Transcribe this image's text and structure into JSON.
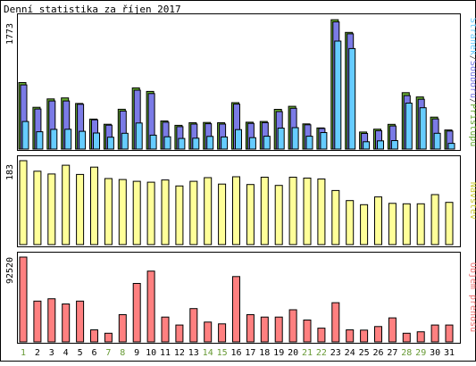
{
  "title": "Denní statistika za říjen 2017",
  "chart_data": [
    {
      "type": "bar",
      "title": "Denní statistika za říjen 2017",
      "ylabel_max": "1773",
      "ylim": [
        0,
        1773
      ],
      "legend": [
        {
          "label": "Stránek",
          "color": "#66ccff"
        },
        {
          "label": "/",
          "color": "#555555"
        },
        {
          "label": "Souborů",
          "color": "#7b7be6"
        },
        {
          "label": "/",
          "color": "#555555"
        },
        {
          "label": "Přístupů",
          "color": "#66aa33"
        }
      ],
      "legend_position": "right, vertical",
      "categories": [
        "1",
        "2",
        "3",
        "4",
        "5",
        "6",
        "7",
        "8",
        "9",
        "10",
        "11",
        "12",
        "13",
        "14",
        "15",
        "16",
        "17",
        "18",
        "19",
        "20",
        "21",
        "22",
        "23",
        "24",
        "25",
        "26",
        "27",
        "28",
        "29",
        "30",
        "31"
      ],
      "series": [
        {
          "name": "Přístupů",
          "color": "#66aa33",
          "values": [
            905,
            568,
            682,
            696,
            620,
            408,
            338,
            542,
            832,
            785,
            382,
            323,
            358,
            362,
            358,
            631,
            366,
            375,
            541,
            582,
            343,
            288,
            1760,
            1587,
            232,
            271,
            336,
            767,
            709,
            435,
            260
          ]
        },
        {
          "name": "Souborů",
          "color": "#7b7be6",
          "values": [
            873,
            545,
            655,
            655,
            610,
            398,
            325,
            517,
            802,
            755,
            365,
            305,
            340,
            345,
            340,
            612,
            350,
            360,
            510,
            555,
            330,
            280,
            1730,
            1568,
            212,
            250,
            315,
            728,
            678,
            410,
            245
          ]
        },
        {
          "name": "Stránek",
          "color": "#66ccff",
          "values": [
            375,
            235,
            268,
            270,
            242,
            218,
            162,
            215,
            355,
            190,
            168,
            145,
            148,
            172,
            165,
            265,
            155,
            175,
            285,
            292,
            175,
            225,
            1470,
            1367,
            100,
            112,
            115,
            625,
            562,
            215,
            78
          ]
        }
      ]
    },
    {
      "type": "bar",
      "ylabel_max": "183",
      "ylim": [
        0,
        183
      ],
      "legend": [
        {
          "label": "Návštěv",
          "color": "#cccc33"
        }
      ],
      "categories": [
        "1",
        "2",
        "3",
        "4",
        "5",
        "6",
        "7",
        "8",
        "9",
        "10",
        "11",
        "12",
        "13",
        "14",
        "15",
        "16",
        "17",
        "18",
        "19",
        "20",
        "21",
        "22",
        "23",
        "24",
        "25",
        "26",
        "27",
        "28",
        "29",
        "30",
        "31"
      ],
      "series": [
        {
          "name": "Návštěv",
          "color": "#ffff99",
          "values": [
            183,
            160,
            154,
            173,
            153,
            169,
            144,
            142,
            138,
            136,
            141,
            128,
            138,
            146,
            132,
            148,
            131,
            147,
            129,
            147,
            145,
            143,
            118,
            96,
            87,
            104,
            90,
            89,
            89,
            109,
            92
          ]
        }
      ]
    },
    {
      "type": "bar",
      "ylabel_max": "92520",
      "ylim": [
        0,
        92520
      ],
      "legend": [
        {
          "label": "Objem přenosu",
          "color": "#ee7777"
        }
      ],
      "categories": [
        "1",
        "2",
        "3",
        "4",
        "5",
        "6",
        "7",
        "8",
        "9",
        "10",
        "11",
        "12",
        "13",
        "14",
        "15",
        "16",
        "17",
        "18",
        "19",
        "20",
        "21",
        "22",
        "23",
        "24",
        "25",
        "26",
        "27",
        "28",
        "29",
        "30",
        "31"
      ],
      "series": [
        {
          "name": "Objem přenosu",
          "color": "#ff8080",
          "values": [
            92520,
            44460,
            47030,
            41360,
            44460,
            13100,
            9420,
            29680,
            63780,
            77260,
            27090,
            18440,
            36290,
            21610,
            19700,
            71300,
            29680,
            27090,
            27090,
            35040,
            23820,
            14970,
            42770,
            13100,
            12850,
            16790,
            26160,
            9420,
            10980,
            18440,
            18440
          ]
        }
      ]
    }
  ],
  "weekend_days": [
    "1",
    "7",
    "8",
    "14",
    "15",
    "21",
    "22",
    "28",
    "29"
  ],
  "weekday_label_color": "#000000",
  "weekend_label_color": "#669933"
}
